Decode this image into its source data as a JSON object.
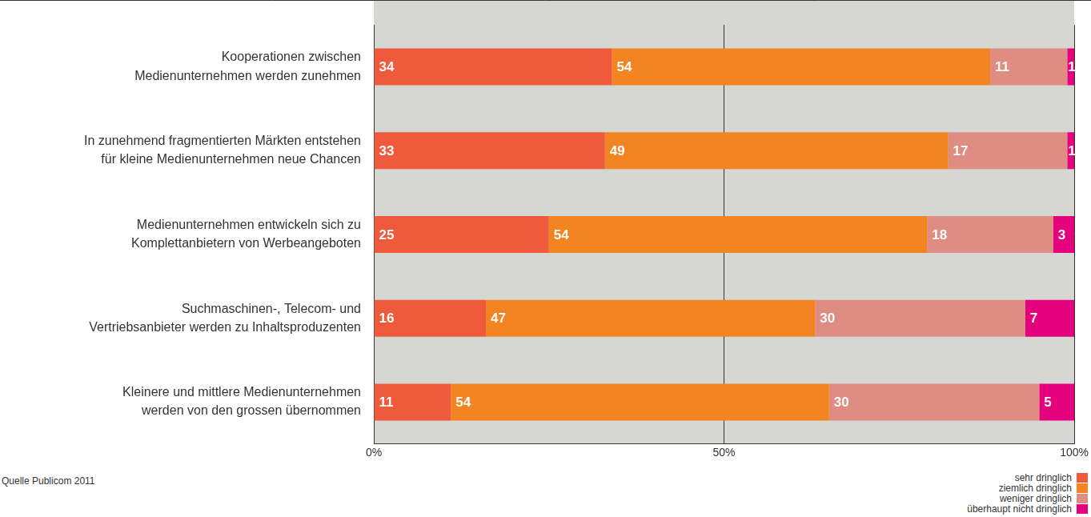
{
  "chart_data": {
    "type": "bar",
    "orientation": "horizontal",
    "stacked": true,
    "data_labels": true,
    "grid": true,
    "legend": "lower right",
    "source": "Quelle Publicom 2011",
    "categories": [
      "Kooperationen zwischen Medienunternehmen werden zunehmen",
      "In zunehmend fragmentierten Märkten entstehen für kleine Medienunternehmen neue Chancen",
      "Medienunternehmen entwickeln sich zu Komplettanbietern von Werbeangeboten",
      "Suchmaschinen-, Telecom- und Vertriebsanbieter werden zu Inhaltsproduzenten",
      "Kleinere und mittlere Medienunternehmen werden von den grossen übernommen"
    ],
    "series": [
      {
        "name": "sehr dringlich",
        "color": "#ef5a3c",
        "values": [
          34,
          33,
          25,
          16,
          11
        ]
      },
      {
        "name": "ziemlich dringlich",
        "color": "#f28522",
        "values": [
          54,
          49,
          54,
          47,
          54
        ]
      },
      {
        "name": "weniger dringlich",
        "color": "#df8c82",
        "values": [
          11,
          17,
          18,
          30,
          30
        ]
      },
      {
        "name": "überhaupt nicht dringlich",
        "color": "#e5007e",
        "values": [
          1,
          1,
          3,
          7,
          5
        ]
      }
    ],
    "xlim": [
      0,
      100
    ],
    "xticks": [
      {
        "value": 0,
        "label": "0%"
      },
      {
        "value": 50,
        "label": "50%"
      },
      {
        "value": 100,
        "label": "100%"
      }
    ]
  }
}
